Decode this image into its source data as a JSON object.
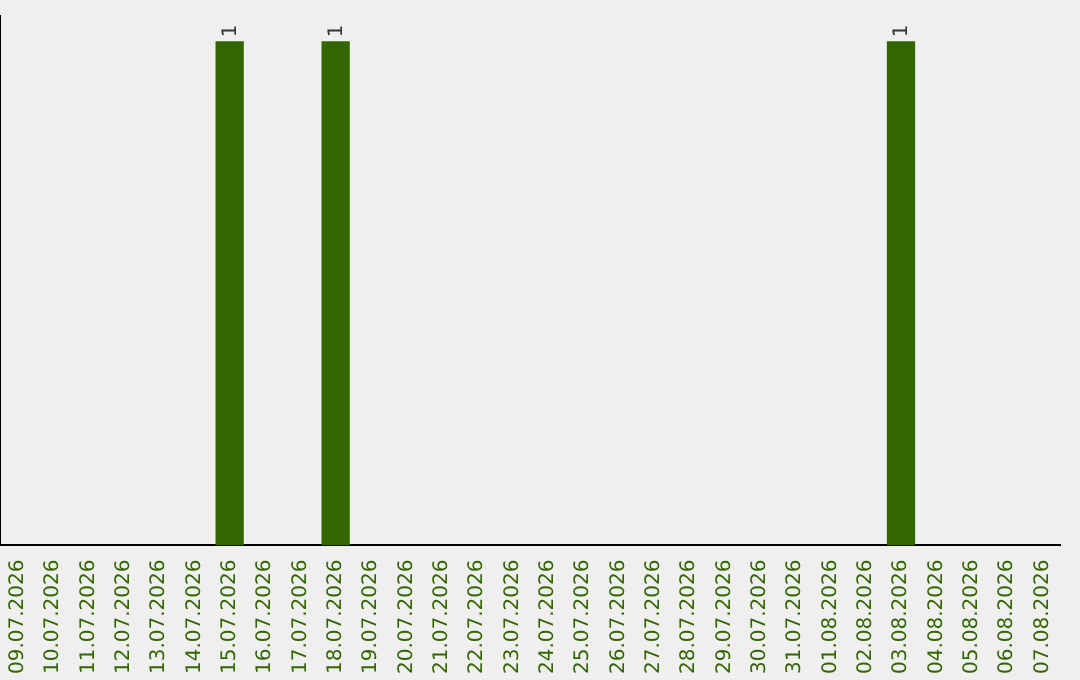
{
  "chart_data": {
    "type": "bar",
    "categories": [
      "09.07.2026",
      "10.07.2026",
      "11.07.2026",
      "12.07.2026",
      "13.07.2026",
      "14.07.2026",
      "15.07.2026",
      "16.07.2026",
      "17.07.2026",
      "18.07.2026",
      "19.07.2026",
      "20.07.2026",
      "21.07.2026",
      "22.07.2026",
      "23.07.2026",
      "24.07.2026",
      "25.07.2026",
      "26.07.2026",
      "27.07.2026",
      "28.07.2026",
      "29.07.2026",
      "30.07.2026",
      "31.07.2026",
      "01.08.2026",
      "02.08.2026",
      "03.08.2026",
      "04.08.2026",
      "05.08.2026",
      "06.08.2026",
      "07.08.2026"
    ],
    "values": [
      0,
      0,
      0,
      0,
      0,
      0,
      1,
      0,
      0,
      1,
      0,
      0,
      0,
      0,
      0,
      0,
      0,
      0,
      0,
      0,
      0,
      0,
      0,
      0,
      0,
      1,
      0,
      0,
      0,
      0
    ],
    "value_labels": [
      null,
      null,
      null,
      null,
      null,
      null,
      "1",
      null,
      null,
      "1",
      null,
      null,
      null,
      null,
      null,
      null,
      null,
      null,
      null,
      null,
      null,
      null,
      null,
      null,
      null,
      "1",
      null,
      null,
      null,
      null
    ],
    "color": "#336600",
    "ylim": [
      0,
      1.05
    ],
    "tick_labels": "x",
    "grid": false,
    "legend": false
  }
}
